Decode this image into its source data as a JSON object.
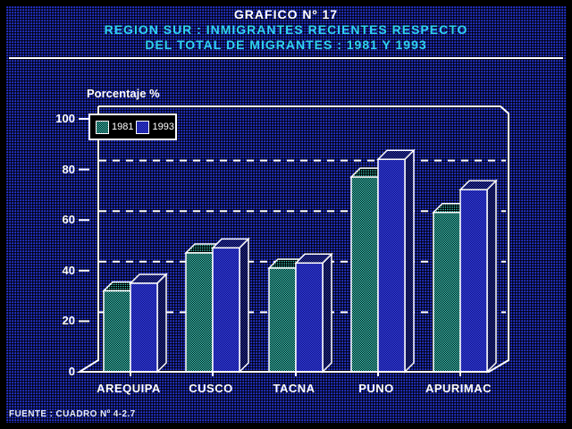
{
  "header": {
    "line1": "GRAFICO Nº 17",
    "line2": "REGION SUR : INMIGRANTES RECIENTES RESPECTO",
    "line3": "DEL TOTAL DE MIGRANTES : 1981 Y 1993"
  },
  "chart_data": {
    "type": "bar",
    "style": "3d-grouped-bars",
    "title": "GRAFICO Nº 17 — REGION SUR : INMIGRANTES RECIENTES RESPECTO DEL TOTAL DE MIGRANTES : 1981 Y 1993",
    "ylabel": "Porcentaje %",
    "xlabel": "",
    "categories": [
      "AREQUIPA",
      "CUSCO",
      "TACNA",
      "PUNO",
      "APURIMAC"
    ],
    "series": [
      {
        "name": "1981",
        "values": [
          32,
          47,
          41,
          77,
          63
        ],
        "color": "#3fe0cf"
      },
      {
        "name": "1993",
        "values": [
          35,
          49,
          43,
          84,
          72
        ],
        "color": "#3742e8"
      }
    ],
    "ylim": [
      0,
      100
    ],
    "yticks": [
      {
        "label": "100",
        "value": 100
      },
      {
        "label": "80",
        "value": 80
      },
      {
        "label": "60",
        "value": 60
      },
      {
        "label": "40",
        "value": 40
      },
      {
        "label": "20",
        "value": 20
      },
      {
        "label": "0",
        "value": 0
      }
    ],
    "gridline_values": [
      80,
      60,
      40,
      20
    ],
    "grid": "dashed horizontal on back wall",
    "legend_position": "top-left"
  },
  "footer": {
    "source": "FUENTE : CUADRO Nº 4-2.7"
  },
  "colors": {
    "page_background": "#000000",
    "panel_dot": "#2433cf",
    "title_primary": "#ffffff",
    "title_accent": "#2fd4ee",
    "axis_line": "#ffffff",
    "text_white": "#ffffff",
    "series_1981": "#3fe0cf",
    "series_1993": "#3742e8",
    "series_1993_base": "#0d1078",
    "series_1993_top": "#2e38d8",
    "series_1993_side": "#232cae"
  }
}
